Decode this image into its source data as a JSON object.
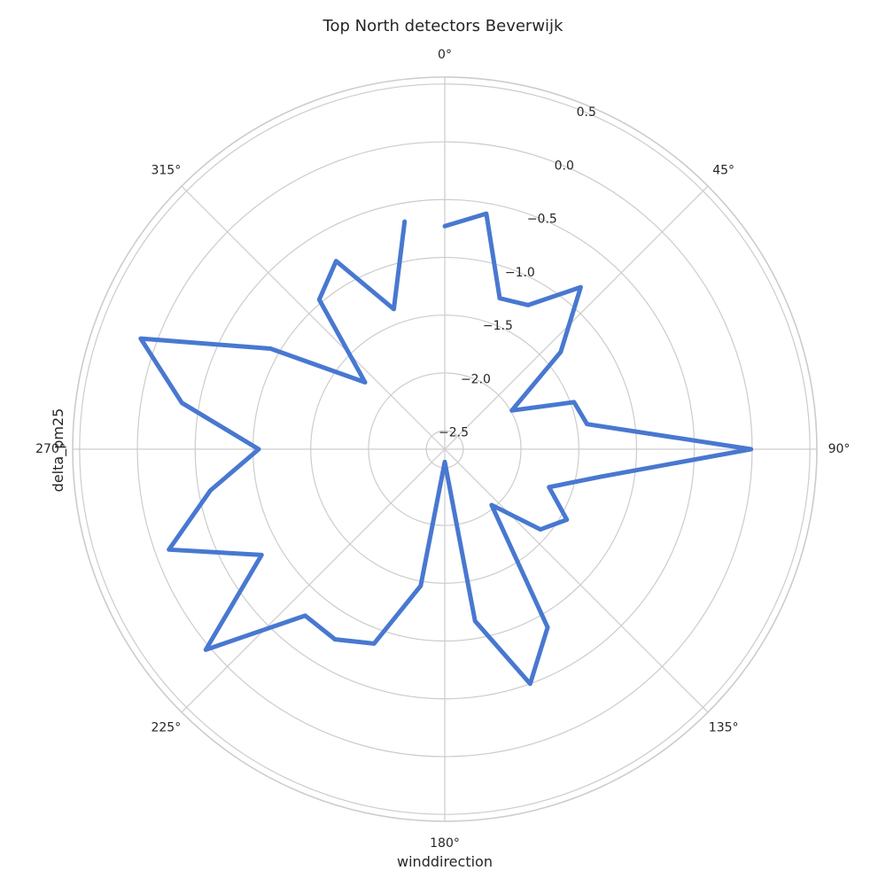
{
  "chart_data": {
    "type": "line",
    "projection": "polar",
    "title": "Top North detectors Beverwijk",
    "xlabel": "winddirection",
    "ylabel": "delta_pm25",
    "angle_unit": "degrees",
    "theta_zero_location": "N",
    "theta_direction": "clockwise",
    "theta_ticks": [
      0,
      45,
      90,
      135,
      180,
      225,
      270,
      315
    ],
    "theta_tick_labels": [
      "0°",
      "45°",
      "90°",
      "135°",
      "180°",
      "225°",
      "270°",
      "315°"
    ],
    "r_ticks": [
      -2.5,
      -2.0,
      -1.5,
      -1.0,
      -0.5,
      0.0,
      0.5
    ],
    "r_tick_labels": [
      "−2.5",
      "−2.0",
      "−1.5",
      "−1.0",
      "−0.5",
      "0.0",
      "0.5"
    ],
    "r_tick_label_angle": 22.5,
    "rlim": [
      -2.66,
      0.56
    ],
    "grid": true,
    "closed": false,
    "series": [
      {
        "color": "#4878d0",
        "x": [
          0,
          10,
          20,
          30,
          40,
          50,
          60,
          70,
          80,
          90,
          100,
          110,
          120,
          130,
          140,
          150,
          160,
          170,
          180,
          190,
          200,
          210,
          220,
          230,
          240,
          250,
          260,
          270,
          280,
          290,
          300,
          310,
          320,
          330,
          340,
          350
        ],
        "y": [
          -0.73,
          -0.59,
          -1.27,
          -1.22,
          -0.83,
          -1.35,
          -1.99,
          -1.47,
          -1.41,
          -0.01,
          -1.29,
          -1.7,
          -1.44,
          -1.58,
          -2.03,
          -0.88,
          -0.5,
          -1.15,
          -2.55,
          -1.46,
          -0.87,
          -0.76,
          -0.78,
          0.04,
          -0.83,
          -0.12,
          -0.6,
          -1.05,
          -0.35,
          0.14,
          -0.92,
          -1.76,
          -0.97,
          -0.78,
          -1.37,
          -0.66
        ]
      }
    ]
  }
}
